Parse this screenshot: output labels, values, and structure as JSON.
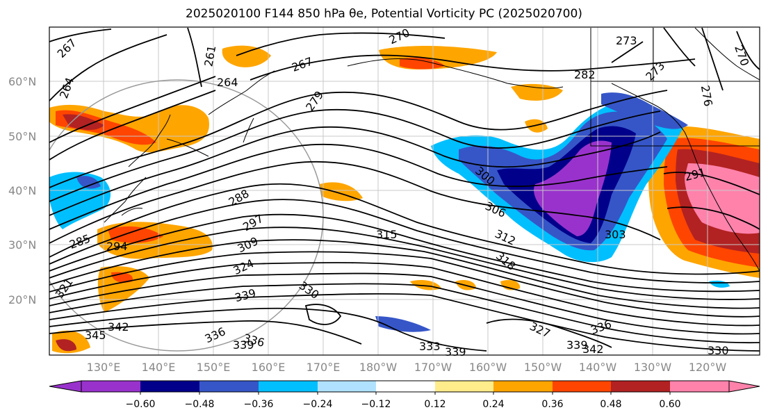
{
  "title": "2025020100 F144 850 hPa θe, Potential Vorticity PC (2025020700)",
  "map": {
    "lat_labels": [
      "60°N",
      "50°N",
      "40°N",
      "30°N",
      "20°N"
    ],
    "lon_labels": [
      "130°E",
      "140°E",
      "150°E",
      "160°E",
      "170°E",
      "180°W",
      "170°W",
      "160°W",
      "150°W",
      "140°W",
      "130°W",
      "120°W"
    ],
    "contour_labels": [
      "267",
      "261",
      "264",
      "267",
      "279",
      "270",
      "273",
      "282",
      "273",
      "276",
      "270",
      "264",
      "288",
      "297",
      "300",
      "306",
      "309",
      "312",
      "315",
      "303",
      "318",
      "324",
      "294",
      "291",
      "285",
      "321",
      "330",
      "339",
      "342",
      "345",
      "336",
      "339",
      "336",
      "333",
      "339",
      "327",
      "339",
      "342",
      "336",
      "330"
    ]
  },
  "colorbar": {
    "colors": [
      "#9932CC",
      "#00008B",
      "#3656C8",
      "#00BFFF",
      "#B0E2FF",
      "#FFFFFF",
      "#FFEC8B",
      "#FFA500",
      "#FF4500",
      "#B22222",
      "#FF82AB"
    ],
    "ticks": [
      "−0.60",
      "−0.48",
      "−0.36",
      "−0.24",
      "−0.12",
      "0.12",
      "0.24",
      "0.36",
      "0.48",
      "0.60"
    ]
  }
}
